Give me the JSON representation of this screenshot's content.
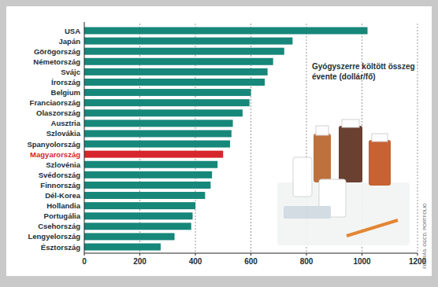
{
  "chart_data": {
    "type": "bar",
    "orientation": "horizontal",
    "title": "Gyógyszerre költött összeg évente (dollár/fő)",
    "annotations": [
      "FORRÁS: OECD, PORTFOLIO"
    ],
    "categories": [
      "USA",
      "Japán",
      "Görögország",
      "Németország",
      "Svájc",
      "Írország",
      "Belgium",
      "Franciaország",
      "Olaszország",
      "Ausztria",
      "Szlovákia",
      "Spanyolország",
      "Magyarország",
      "Szlovénia",
      "Svédország",
      "Finnország",
      "Dél-Korea",
      "Hollandia",
      "Portugália",
      "Csehország",
      "Lengyelország",
      "Észtország"
    ],
    "values": [
      1020,
      750,
      720,
      680,
      660,
      650,
      600,
      595,
      570,
      535,
      530,
      525,
      500,
      480,
      460,
      455,
      435,
      400,
      390,
      385,
      325,
      275
    ],
    "color": "#17877a",
    "colors": [
      "#17877a",
      "#17877a",
      "#17877a",
      "#17877a",
      "#17877a",
      "#17877a",
      "#17877a",
      "#17877a",
      "#17877a",
      "#17877a",
      "#17877a",
      "#17877a",
      "#d7262b",
      "#17877a",
      "#17877a",
      "#17877a",
      "#17877a",
      "#17877a",
      "#17877a",
      "#17877a",
      "#17877a",
      "#17877a"
    ],
    "xlim": [
      0,
      1200
    ],
    "xticks": [
      0,
      200,
      400,
      600,
      800,
      1000,
      1200
    ],
    "grid": true
  }
}
